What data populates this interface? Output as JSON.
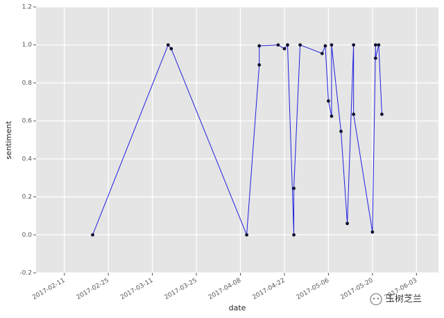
{
  "chart_data": {
    "type": "line",
    "x_label": "date",
    "y_label": "sentiment",
    "x": [
      "2017-02-20",
      "2017-03-16",
      "2017-03-17",
      "2017-04-10",
      "2017-04-14",
      "2017-04-14",
      "2017-04-20",
      "2017-04-22",
      "2017-04-23",
      "2017-04-25",
      "2017-04-25",
      "2017-04-27",
      "2017-05-04",
      "2017-05-05",
      "2017-05-06",
      "2017-05-07",
      "2017-05-07",
      "2017-05-10",
      "2017-05-12",
      "2017-05-14",
      "2017-05-14",
      "2017-05-20",
      "2017-05-21",
      "2017-05-21",
      "2017-05-22",
      "2017-05-23"
    ],
    "series": [
      {
        "color": "#1f1fe0",
        "marker_color": "#10102e",
        "values": [
          0,
          1,
          0.98,
          0,
          0.895,
          0.995,
          1,
          0.98,
          1,
          0,
          0.245,
          1,
          0.955,
          0.995,
          0.705,
          0.625,
          1,
          0.545,
          0.06,
          1,
          0.635,
          0.015,
          1,
          0.93,
          1,
          0.635
        ]
      }
    ],
    "xlim": [
      "2017-02-02",
      "2017-06-10"
    ],
    "xticks": [
      "2017-02-11",
      "2017-02-25",
      "2017-03-11",
      "2017-03-25",
      "2017-04-08",
      "2017-04-22",
      "2017-05-06",
      "2017-05-20",
      "2017-06-03"
    ],
    "ylim": [
      -0.2,
      1.2
    ],
    "yticks": [
      -0.2,
      {
        "value": 0,
        "label": "0.0"
      },
      0.2,
      0.4,
      0.6,
      0.8,
      {
        "value": 1,
        "label": "1.0"
      },
      1.2
    ],
    "grid": true
  },
  "watermark": "玉树芝兰"
}
